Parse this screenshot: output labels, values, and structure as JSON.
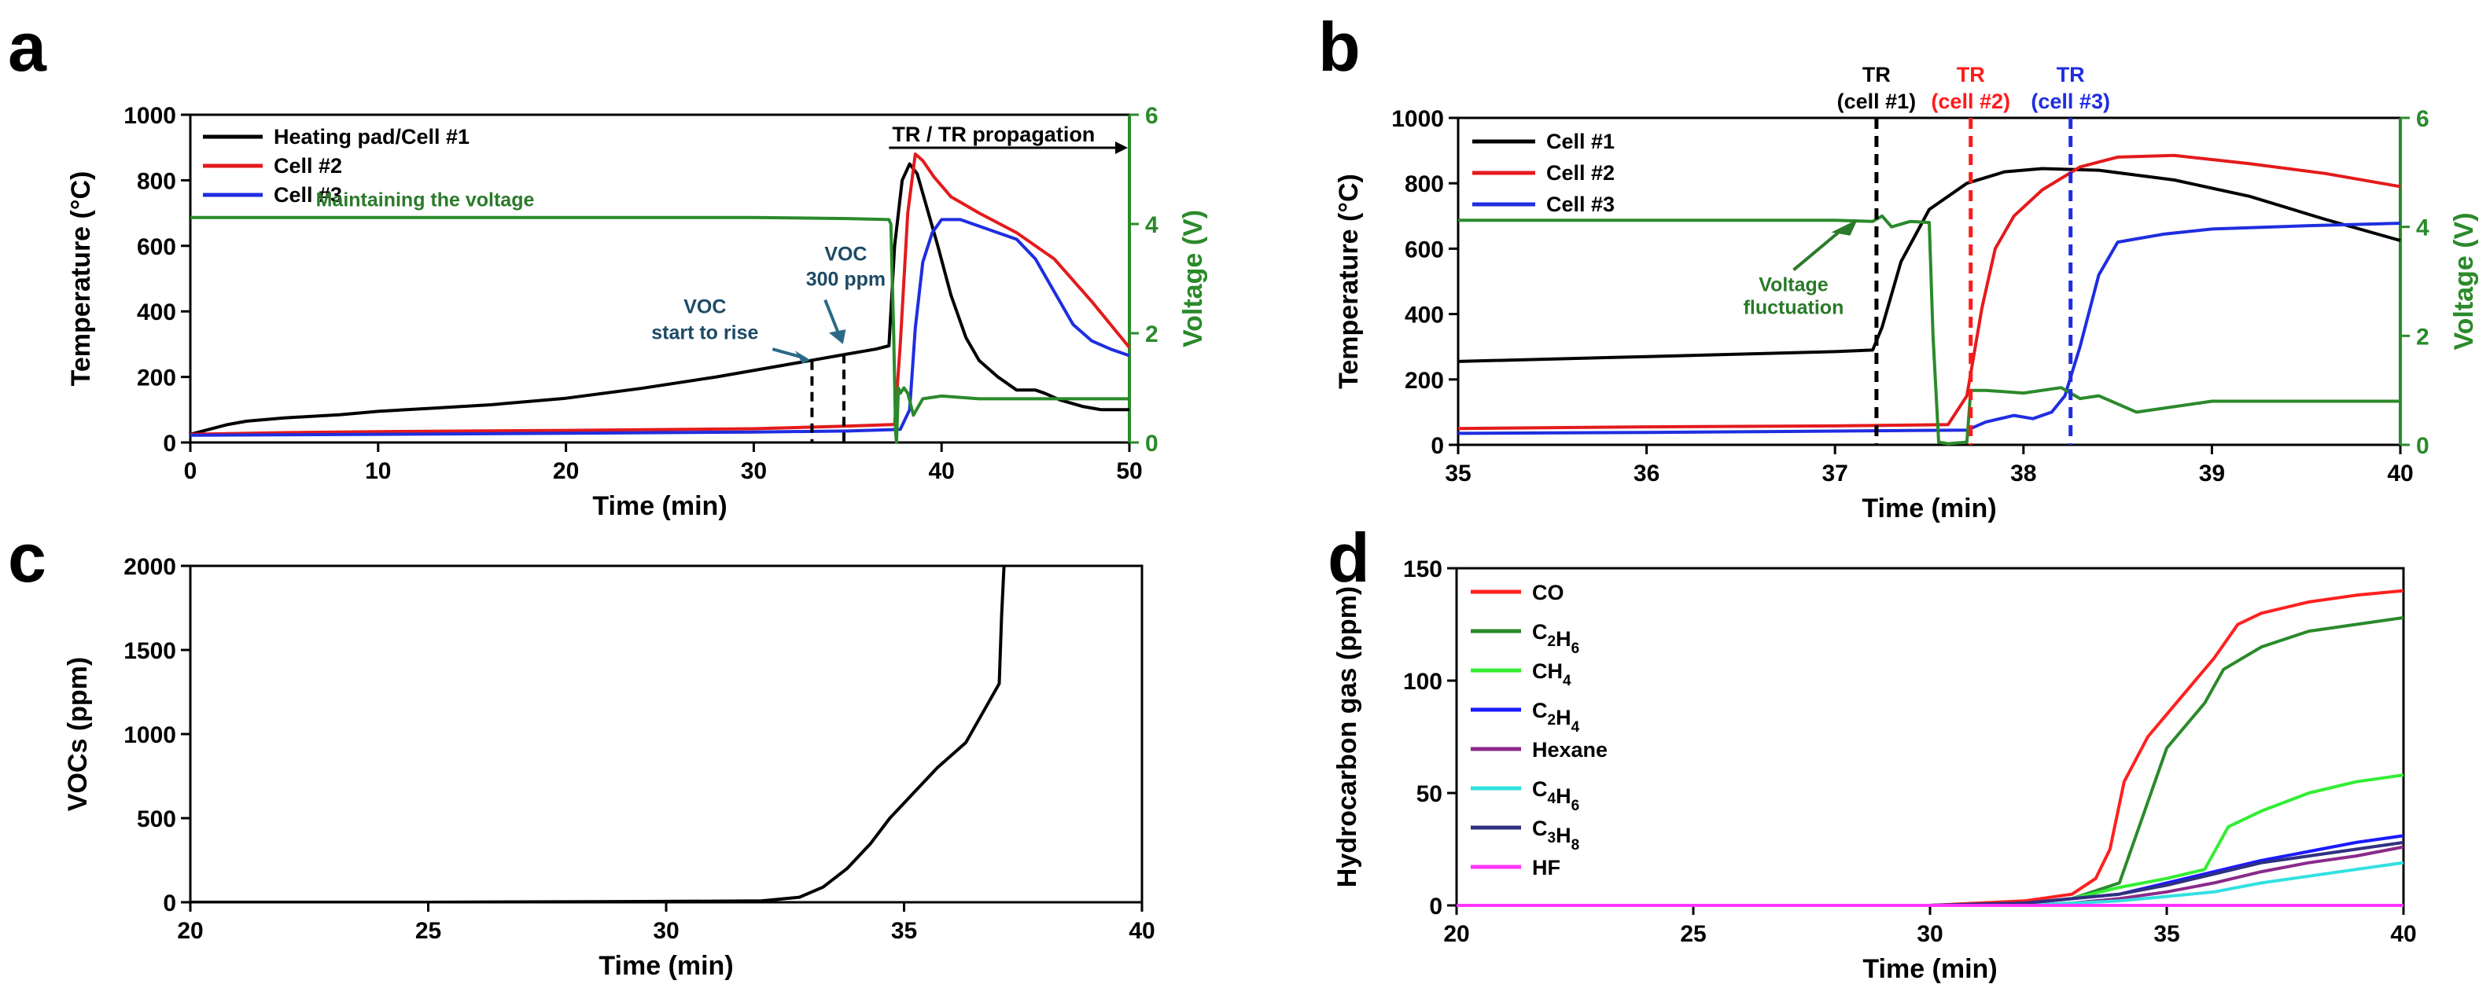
{
  "panel_labels": [
    "a",
    "b",
    "c",
    "d"
  ],
  "chart_data": [
    {
      "panel": "a",
      "type": "line",
      "xlabel": "Time (min)",
      "ylabel": "Temperature (°C)",
      "y2label": "Voltage (V)",
      "xlim": [
        0,
        50
      ],
      "ylim": [
        0,
        1000
      ],
      "y2lim": [
        0,
        6
      ],
      "xticks": [
        0,
        10,
        20,
        30,
        40,
        50
      ],
      "yticks": [
        0,
        200,
        400,
        600,
        800,
        1000
      ],
      "y2ticks": [
        0,
        2,
        4,
        6
      ],
      "legend_position": "top-left",
      "series": [
        {
          "name": "Heating pad/Cell #1",
          "color": "#000000",
          "axis": "left",
          "x": [
            0,
            1,
            2,
            3,
            5,
            8,
            10,
            13,
            16,
            20,
            24,
            28,
            31,
            33,
            35,
            36.5,
            37.2,
            37.5,
            37.9,
            38.3,
            38.7,
            39.2,
            39.8,
            40.5,
            41.3,
            42,
            43,
            44,
            45,
            45.5,
            46.3,
            47.5,
            48.5,
            50
          ],
          "values": [
            25,
            40,
            55,
            65,
            75,
            85,
            95,
            105,
            115,
            135,
            165,
            200,
            230,
            250,
            270,
            285,
            295,
            600,
            800,
            850,
            820,
            720,
            600,
            450,
            320,
            250,
            200,
            160,
            160,
            150,
            130,
            110,
            100,
            100
          ]
        },
        {
          "name": "Cell #2",
          "color": "#e41a1c",
          "axis": "left",
          "x": [
            0,
            5,
            10,
            20,
            30,
            35,
            37.5,
            37.8,
            38.2,
            38.6,
            39,
            39.6,
            40.5,
            42,
            44,
            46,
            48,
            50
          ],
          "values": [
            25,
            30,
            33,
            37,
            42,
            50,
            55,
            300,
            700,
            880,
            860,
            810,
            750,
            700,
            640,
            560,
            430,
            290
          ]
        },
        {
          "name": "Cell #3",
          "color": "#1f2de0",
          "axis": "left",
          "x": [
            0,
            10,
            20,
            30,
            35,
            37.8,
            38.3,
            38.6,
            39,
            39.5,
            40,
            41,
            42,
            43,
            44,
            45,
            46,
            47,
            48,
            49,
            50
          ],
          "values": [
            22,
            25,
            28,
            32,
            35,
            40,
            100,
            350,
            550,
            640,
            680,
            680,
            660,
            640,
            620,
            560,
            460,
            360,
            310,
            285,
            265
          ]
        },
        {
          "name": "Voltage",
          "color": "#2a8a2a",
          "axis": "right",
          "x": [
            0,
            10,
            20,
            30,
            35,
            37.2,
            37.3,
            37.45,
            37.55,
            37.6,
            37.7,
            37.8,
            38,
            38.2,
            38.5,
            39,
            40,
            42,
            44,
            46,
            48,
            50
          ],
          "values": [
            4.12,
            4.12,
            4.12,
            4.12,
            4.1,
            4.08,
            4.0,
            2.0,
            0.2,
            0.0,
            1.0,
            0.9,
            1.0,
            0.9,
            0.5,
            0.8,
            0.85,
            0.8,
            0.8,
            0.8,
            0.8,
            0.8
          ]
        }
      ],
      "annotations": {
        "tr_propagation": "TR / TR propagation",
        "maintaining": "Maintaining the voltage",
        "voc_rise_1": "VOC",
        "voc_rise_2": "start to rise",
        "voc_300_1": "VOC",
        "voc_300_2": "300 ppm",
        "voc_rise_x": 33.1,
        "voc_300_x": 34.8
      }
    },
    {
      "panel": "b",
      "type": "line",
      "xlabel": "Time (min)",
      "ylabel": "Temperature (°C)",
      "y2label": "Voltage (V)",
      "xlim": [
        35,
        40
      ],
      "ylim": [
        0,
        1000
      ],
      "y2lim": [
        0,
        6
      ],
      "xticks": [
        35,
        36,
        37,
        38,
        39,
        40
      ],
      "yticks": [
        0,
        200,
        400,
        600,
        800,
        1000
      ],
      "y2ticks": [
        0,
        2,
        4,
        6
      ],
      "legend_position": "top-left",
      "series": [
        {
          "name": "Cell #1",
          "color": "#000000",
          "axis": "left",
          "x": [
            35,
            36,
            37,
            37.2,
            37.25,
            37.35,
            37.5,
            37.7,
            37.9,
            38.1,
            38.4,
            38.8,
            39.2,
            39.6,
            40
          ],
          "values": [
            255,
            270,
            285,
            290,
            360,
            560,
            720,
            800,
            835,
            845,
            840,
            810,
            760,
            690,
            625
          ]
        },
        {
          "name": "Cell #2",
          "color": "#e41a1c",
          "axis": "left",
          "x": [
            35,
            36,
            37,
            37.6,
            37.7,
            37.78,
            37.85,
            37.95,
            38.1,
            38.3,
            38.5,
            38.8,
            39.2,
            39.6,
            40
          ],
          "values": [
            50,
            55,
            58,
            62,
            150,
            420,
            600,
            700,
            780,
            850,
            880,
            885,
            860,
            830,
            790
          ]
        },
        {
          "name": "Cell #3",
          "color": "#1f2de0",
          "axis": "left",
          "x": [
            35,
            36,
            37,
            37.7,
            37.8,
            37.95,
            38.05,
            38.15,
            38.22,
            38.3,
            38.4,
            38.5,
            38.6,
            38.75,
            39,
            39.5,
            40
          ],
          "values": [
            35,
            38,
            42,
            45,
            70,
            90,
            80,
            100,
            150,
            300,
            520,
            620,
            630,
            645,
            660,
            670,
            678
          ]
        },
        {
          "name": "Voltage",
          "color": "#2a8a2a",
          "axis": "right",
          "x": [
            35,
            36,
            37,
            37.2,
            37.25,
            37.3,
            37.4,
            37.5,
            37.52,
            37.55,
            37.6,
            37.7,
            37.72,
            37.8,
            38,
            38.2,
            38.3,
            38.4,
            38.6,
            39,
            39.5,
            40
          ],
          "values": [
            4.12,
            4.12,
            4.12,
            4.1,
            4.2,
            4.0,
            4.1,
            4.08,
            2.0,
            0.05,
            0.02,
            0.05,
            1.0,
            1.0,
            0.95,
            1.05,
            0.85,
            0.9,
            0.6,
            0.8,
            0.8,
            0.8
          ]
        }
      ],
      "annotations": {
        "tr1_1": "TR",
        "tr1_2": "(cell #1)",
        "tr2_1": "TR",
        "tr2_2": "(cell #2)",
        "tr3_1": "TR",
        "tr3_2": "(cell #3)",
        "tr1_x": 37.22,
        "tr2_x": 37.72,
        "tr3_x": 38.25,
        "fluct_1": "Voltage",
        "fluct_2": "fluctuation"
      }
    },
    {
      "panel": "c",
      "type": "line",
      "xlabel": "Time (min)",
      "ylabel": "VOCs (ppm)",
      "xlim": [
        20,
        40
      ],
      "ylim": [
        0,
        2000
      ],
      "xticks": [
        20,
        25,
        30,
        35,
        40
      ],
      "yticks": [
        0,
        500,
        1000,
        1500,
        2000
      ],
      "series": [
        {
          "name": "VOCs",
          "color": "#000000",
          "x": [
            20,
            25,
            30,
            32,
            32.8,
            33.3,
            33.8,
            34.3,
            34.7,
            35.2,
            35.7,
            36.3,
            36.8,
            37,
            37.05,
            37.1
          ],
          "values": [
            0,
            0,
            5,
            8,
            30,
            90,
            200,
            350,
            500,
            650,
            800,
            950,
            1200,
            1300,
            1700,
            2000
          ]
        }
      ]
    },
    {
      "panel": "d",
      "type": "line",
      "xlabel": "Time (min)",
      "ylabel": "Hydrocarbon gas (ppm)",
      "xlim": [
        20,
        40
      ],
      "ylim": [
        0,
        150
      ],
      "xticks": [
        20,
        25,
        30,
        35,
        40
      ],
      "yticks": [
        0,
        50,
        100,
        150
      ],
      "legend_position": "top-left",
      "series": [
        {
          "name": "CO",
          "sub": "",
          "color": "#ff2020",
          "x": [
            20,
            30,
            32,
            33,
            33.5,
            33.8,
            34.1,
            34.6,
            35.2,
            36,
            36.5,
            37,
            38,
            39,
            40
          ],
          "values": [
            0,
            0,
            2,
            5,
            12,
            25,
            55,
            75,
            90,
            110,
            125,
            130,
            135,
            138,
            140
          ]
        },
        {
          "name": "C2H6",
          "sub": "2,6",
          "color": "#2a8a2a",
          "x": [
            20,
            30,
            32,
            33,
            34,
            34.5,
            35,
            35.8,
            36.2,
            37,
            38,
            39,
            40
          ],
          "values": [
            0,
            0,
            1,
            3,
            10,
            40,
            70,
            90,
            105,
            115,
            122,
            125,
            128
          ]
        },
        {
          "name": "CH4",
          "sub": "4",
          "color": "#33ee33",
          "x": [
            20,
            30,
            32,
            33,
            34,
            35,
            35.8,
            36.3,
            37,
            38,
            39,
            40
          ],
          "values": [
            0,
            0,
            1,
            3,
            8,
            12,
            16,
            35,
            42,
            50,
            55,
            58
          ]
        },
        {
          "name": "C2H4",
          "sub": "2,4",
          "color": "#1a1aff",
          "x": [
            20,
            30,
            32,
            33,
            34,
            35,
            36,
            37,
            38,
            39,
            40
          ],
          "values": [
            0,
            0,
            1,
            3,
            5,
            10,
            15,
            20,
            24,
            28,
            31
          ]
        },
        {
          "name": "Hexane",
          "sub": "",
          "color": "#8b2a8b",
          "x": [
            20,
            30,
            32,
            33,
            34,
            35,
            36,
            37,
            38,
            39,
            40
          ],
          "values": [
            0,
            0,
            0,
            1,
            3,
            6,
            10,
            15,
            19,
            22,
            26
          ]
        },
        {
          "name": "C4H6",
          "sub": "4,6",
          "color": "#33e0e0",
          "x": [
            20,
            30,
            32,
            33,
            34,
            35,
            36,
            37,
            38,
            39,
            40
          ],
          "values": [
            0,
            0,
            0,
            1,
            2,
            4,
            6,
            10,
            13,
            16,
            19
          ]
        },
        {
          "name": "C3H8",
          "sub": "3,8",
          "color": "#303080",
          "x": [
            20,
            30,
            32,
            33,
            34,
            35,
            36,
            37,
            38,
            39,
            40
          ],
          "values": [
            0,
            0,
            1,
            3,
            5,
            9,
            14,
            19,
            22,
            25,
            28
          ]
        },
        {
          "name": "HF",
          "sub": "",
          "color": "#ff33ff",
          "x": [
            20,
            40
          ],
          "values": [
            0,
            0
          ]
        }
      ]
    }
  ]
}
